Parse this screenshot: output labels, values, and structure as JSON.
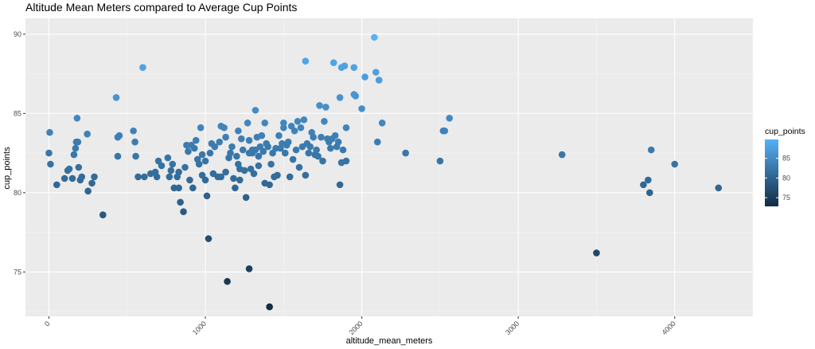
{
  "chart_data": {
    "type": "scatter",
    "title": "Altitude Mean Meters compared to Average Cup Points",
    "xlabel": "altitude_mean_meters",
    "ylabel": "cup_points",
    "xlim": [
      -150,
      4500
    ],
    "ylim": [
      72.2,
      91
    ],
    "x_ticks": [
      0,
      1000,
      2000,
      3000,
      4000
    ],
    "x_tick_labels": [
      "0",
      "1000",
      "2000",
      "3000",
      "4000"
    ],
    "y_ticks": [
      75,
      80,
      85,
      90
    ],
    "y_tick_labels": [
      "75",
      "80",
      "85",
      "90"
    ],
    "grid": true,
    "legend": {
      "title": "cup_points",
      "position": "right",
      "labels": [
        "85",
        "80",
        "75"
      ],
      "values": [
        85,
        80,
        75
      ],
      "color_range": [
        72.8,
        89.8
      ],
      "color_low": "#132B43",
      "color_high": "#56B1F7"
    },
    "points": [
      [
        0,
        82.5
      ],
      [
        5,
        83.8
      ],
      [
        10,
        81.8
      ],
      [
        50,
        80.5
      ],
      [
        100,
        80.9
      ],
      [
        120,
        81.4
      ],
      [
        130,
        81.5
      ],
      [
        150,
        80.9
      ],
      [
        160,
        82.4
      ],
      [
        170,
        82.8
      ],
      [
        175,
        83.2
      ],
      [
        180,
        84.7
      ],
      [
        185,
        83.2
      ],
      [
        190,
        81.6
      ],
      [
        200,
        80.8
      ],
      [
        210,
        81.0
      ],
      [
        245,
        83.7
      ],
      [
        250,
        80.1
      ],
      [
        275,
        80.6
      ],
      [
        290,
        81.0
      ],
      [
        345,
        78.6
      ],
      [
        430,
        86.0
      ],
      [
        440,
        82.3
      ],
      [
        440,
        83.5
      ],
      [
        450,
        83.6
      ],
      [
        540,
        83.9
      ],
      [
        550,
        83.2
      ],
      [
        555,
        82.3
      ],
      [
        570,
        81.0
      ],
      [
        600,
        87.9
      ],
      [
        610,
        81.0
      ],
      [
        650,
        81.2
      ],
      [
        680,
        81.3
      ],
      [
        690,
        81.0
      ],
      [
        700,
        82.0
      ],
      [
        720,
        81.7
      ],
      [
        760,
        82.2
      ],
      [
        770,
        81.0
      ],
      [
        780,
        81.4
      ],
      [
        790,
        81.8
      ],
      [
        800,
        80.3
      ],
      [
        820,
        81.0
      ],
      [
        830,
        80.3
      ],
      [
        830,
        81.3
      ],
      [
        840,
        79.4
      ],
      [
        860,
        78.8
      ],
      [
        870,
        81.6
      ],
      [
        880,
        83.0
      ],
      [
        890,
        82.6
      ],
      [
        900,
        80.8
      ],
      [
        910,
        83.0
      ],
      [
        920,
        80.3
      ],
      [
        930,
        82.8
      ],
      [
        940,
        83.3
      ],
      [
        950,
        82.1
      ],
      [
        960,
        81.8
      ],
      [
        970,
        84.1
      ],
      [
        980,
        82.4
      ],
      [
        980,
        81.1
      ],
      [
        1000,
        80.8
      ],
      [
        1000,
        82.0
      ],
      [
        1010,
        79.8
      ],
      [
        1020,
        77.1
      ],
      [
        1030,
        82.5
      ],
      [
        1040,
        83.1
      ],
      [
        1050,
        81.2
      ],
      [
        1060,
        82.9
      ],
      [
        1080,
        81.0
      ],
      [
        1090,
        83.2
      ],
      [
        1100,
        84.2
      ],
      [
        1100,
        81.0
      ],
      [
        1120,
        84.1
      ],
      [
        1130,
        83.5
      ],
      [
        1130,
        81.3
      ],
      [
        1140,
        74.4
      ],
      [
        1150,
        82.2
      ],
      [
        1160,
        82.5
      ],
      [
        1170,
        82.9
      ],
      [
        1180,
        80.9
      ],
      [
        1190,
        80.3
      ],
      [
        1200,
        82.3
      ],
      [
        1210,
        81.8
      ],
      [
        1210,
        83.9
      ],
      [
        1220,
        80.8
      ],
      [
        1220,
        81.5
      ],
      [
        1230,
        83.4
      ],
      [
        1240,
        82.7
      ],
      [
        1250,
        81.4
      ],
      [
        1260,
        79.7
      ],
      [
        1270,
        84.4
      ],
      [
        1280,
        82.5
      ],
      [
        1280,
        83.3
      ],
      [
        1280,
        75.2
      ],
      [
        1290,
        81.5
      ],
      [
        1300,
        82.7
      ],
      [
        1300,
        82.5
      ],
      [
        1310,
        81.2
      ],
      [
        1320,
        85.2
      ],
      [
        1320,
        82.7
      ],
      [
        1330,
        83.5
      ],
      [
        1340,
        82.3
      ],
      [
        1340,
        81.7
      ],
      [
        1350,
        82.9
      ],
      [
        1360,
        83.6
      ],
      [
        1370,
        82.6
      ],
      [
        1380,
        84.4
      ],
      [
        1380,
        80.6
      ],
      [
        1390,
        83.1
      ],
      [
        1400,
        82.9
      ],
      [
        1410,
        72.8
      ],
      [
        1410,
        80.5
      ],
      [
        1420,
        81.8
      ],
      [
        1430,
        82.5
      ],
      [
        1440,
        81.0
      ],
      [
        1450,
        82.8
      ],
      [
        1460,
        81.1
      ],
      [
        1470,
        83.6
      ],
      [
        1480,
        82.8
      ],
      [
        1490,
        83.1
      ],
      [
        1500,
        84.1
      ],
      [
        1500,
        84.4
      ],
      [
        1510,
        82.5
      ],
      [
        1520,
        83.0
      ],
      [
        1530,
        83.2
      ],
      [
        1540,
        81.0
      ],
      [
        1550,
        84.2
      ],
      [
        1560,
        82.1
      ],
      [
        1570,
        83.9
      ],
      [
        1580,
        82.7
      ],
      [
        1590,
        84.5
      ],
      [
        1600,
        81.6
      ],
      [
        1610,
        84.1
      ],
      [
        1620,
        82.9
      ],
      [
        1630,
        84.6
      ],
      [
        1640,
        81.1
      ],
      [
        1650,
        83.1
      ],
      [
        1660,
        82.5
      ],
      [
        1670,
        82.9
      ],
      [
        1680,
        83.8
      ],
      [
        1690,
        83.5
      ],
      [
        1700,
        82.4
      ],
      [
        1710,
        82.7
      ],
      [
        1720,
        82.3
      ],
      [
        1730,
        85.5
      ],
      [
        1740,
        83.5
      ],
      [
        1750,
        82.0
      ],
      [
        1760,
        84.5
      ],
      [
        1770,
        85.4
      ],
      [
        1780,
        83.4
      ],
      [
        1790,
        83.2
      ],
      [
        1800,
        82.8
      ],
      [
        1810,
        83.4
      ],
      [
        1820,
        88.2
      ],
      [
        1830,
        83.6
      ],
      [
        1840,
        82.9
      ],
      [
        1850,
        83.2
      ],
      [
        1860,
        86.0
      ],
      [
        1860,
        80.5
      ],
      [
        1870,
        87.9
      ],
      [
        1870,
        81.9
      ],
      [
        1880,
        82.7
      ],
      [
        1890,
        88.0
      ],
      [
        1900,
        82.0
      ],
      [
        1900,
        84.1
      ],
      [
        1950,
        87.9
      ],
      [
        1950,
        86.2
      ],
      [
        1960,
        86.1
      ],
      [
        2000,
        85.3
      ],
      [
        2020,
        87.3
      ],
      [
        2080,
        89.8
      ],
      [
        2090,
        87.6
      ],
      [
        2100,
        83.2
      ],
      [
        2110,
        87.1
      ],
      [
        2130,
        84.4
      ],
      [
        2280,
        82.5
      ],
      [
        2500,
        82.0
      ],
      [
        2520,
        83.9
      ],
      [
        2530,
        83.9
      ],
      [
        2560,
        84.7
      ],
      [
        1640,
        88.3
      ],
      [
        3280,
        82.4
      ],
      [
        3500,
        76.2
      ],
      [
        3800,
        80.5
      ],
      [
        3830,
        80.8
      ],
      [
        3840,
        80.0
      ],
      [
        3850,
        82.7
      ],
      [
        4000,
        81.8
      ],
      [
        4280,
        80.3
      ]
    ]
  }
}
